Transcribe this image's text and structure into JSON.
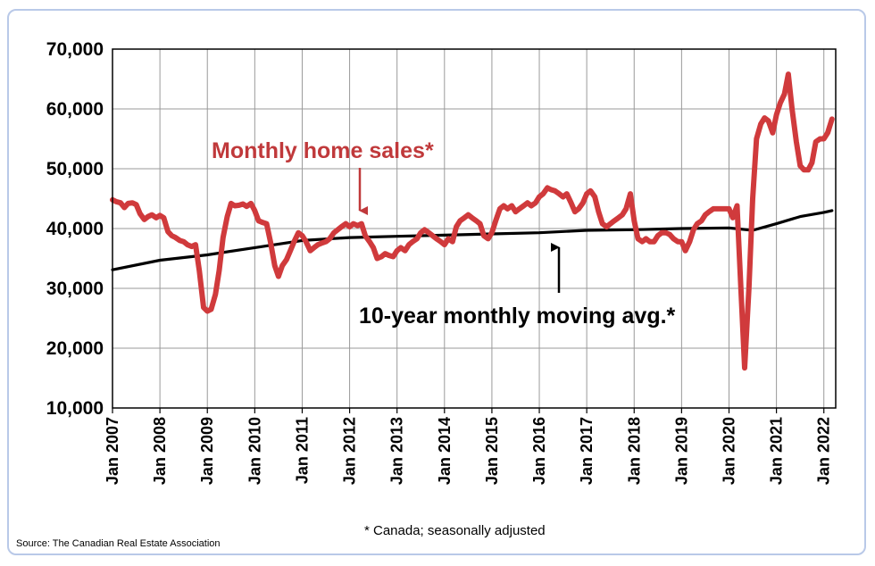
{
  "chart_data": {
    "type": "line",
    "title": "",
    "xlabel": "",
    "ylabel": "",
    "ylim": [
      10000,
      70000
    ],
    "yticks": [
      10000,
      20000,
      30000,
      40000,
      50000,
      60000,
      70000
    ],
    "ytick_labels": [
      "10,000",
      "20,000",
      "30,000",
      "40,000",
      "50,000",
      "60,000",
      "70,000"
    ],
    "x_range": [
      2007.0,
      2022.25
    ],
    "xtick_labels": [
      "Jan 2007",
      "Jan 2008",
      "Jan 2009",
      "Jan 2010",
      "Jan 2011",
      "Jan 2012",
      "Jan 2013",
      "Jan 2014",
      "Jan 2015",
      "Jan 2016",
      "Jan 2017",
      "Jan 2018",
      "Jan 2019",
      "Jan 2020",
      "Jan 2021",
      "Jan 2022"
    ],
    "grid": true,
    "series": [
      {
        "name": "Monthly home sales*",
        "color": "#d03a3c",
        "points": [
          [
            2007.0,
            44800
          ],
          [
            2007.08,
            44500
          ],
          [
            2007.17,
            44300
          ],
          [
            2007.25,
            43500
          ],
          [
            2007.33,
            44200
          ],
          [
            2007.42,
            44300
          ],
          [
            2007.5,
            44000
          ],
          [
            2007.58,
            42500
          ],
          [
            2007.67,
            41500
          ],
          [
            2007.75,
            42000
          ],
          [
            2007.83,
            42300
          ],
          [
            2007.92,
            41800
          ],
          [
            2008.0,
            42200
          ],
          [
            2008.08,
            41800
          ],
          [
            2008.17,
            39500
          ],
          [
            2008.25,
            38800
          ],
          [
            2008.33,
            38500
          ],
          [
            2008.42,
            38000
          ],
          [
            2008.5,
            37800
          ],
          [
            2008.58,
            37300
          ],
          [
            2008.67,
            37000
          ],
          [
            2008.75,
            37300
          ],
          [
            2008.83,
            33000
          ],
          [
            2008.92,
            26800
          ],
          [
            2009.0,
            26200
          ],
          [
            2009.08,
            26500
          ],
          [
            2009.17,
            29000
          ],
          [
            2009.25,
            33000
          ],
          [
            2009.33,
            38500
          ],
          [
            2009.42,
            42000
          ],
          [
            2009.5,
            44200
          ],
          [
            2009.58,
            43800
          ],
          [
            2009.67,
            43900
          ],
          [
            2009.75,
            44100
          ],
          [
            2009.83,
            43700
          ],
          [
            2009.92,
            44200
          ],
          [
            2010.0,
            43000
          ],
          [
            2010.08,
            41300
          ],
          [
            2010.17,
            41000
          ],
          [
            2010.25,
            40800
          ],
          [
            2010.33,
            37800
          ],
          [
            2010.42,
            33800
          ],
          [
            2010.5,
            32000
          ],
          [
            2010.58,
            33800
          ],
          [
            2010.67,
            34800
          ],
          [
            2010.75,
            36300
          ],
          [
            2010.83,
            37800
          ],
          [
            2010.92,
            39300
          ],
          [
            2011.0,
            38800
          ],
          [
            2011.08,
            37800
          ],
          [
            2011.17,
            36300
          ],
          [
            2011.25,
            36800
          ],
          [
            2011.33,
            37300
          ],
          [
            2011.42,
            37600
          ],
          [
            2011.5,
            37800
          ],
          [
            2011.58,
            38300
          ],
          [
            2011.67,
            39300
          ],
          [
            2011.75,
            39800
          ],
          [
            2011.83,
            40300
          ],
          [
            2011.92,
            40800
          ],
          [
            2012.0,
            40300
          ],
          [
            2012.08,
            40800
          ],
          [
            2012.17,
            40500
          ],
          [
            2012.25,
            40800
          ],
          [
            2012.33,
            38800
          ],
          [
            2012.42,
            37800
          ],
          [
            2012.5,
            36800
          ],
          [
            2012.58,
            35000
          ],
          [
            2012.67,
            35300
          ],
          [
            2012.75,
            35800
          ],
          [
            2012.83,
            35500
          ],
          [
            2012.92,
            35300
          ],
          [
            2013.0,
            36300
          ],
          [
            2013.08,
            36800
          ],
          [
            2013.17,
            36300
          ],
          [
            2013.25,
            37300
          ],
          [
            2013.33,
            37800
          ],
          [
            2013.42,
            38300
          ],
          [
            2013.5,
            39300
          ],
          [
            2013.58,
            39800
          ],
          [
            2013.67,
            39300
          ],
          [
            2013.75,
            38800
          ],
          [
            2013.83,
            38300
          ],
          [
            2013.92,
            37800
          ],
          [
            2014.0,
            37300
          ],
          [
            2014.08,
            38300
          ],
          [
            2014.17,
            37800
          ],
          [
            2014.25,
            40300
          ],
          [
            2014.33,
            41300
          ],
          [
            2014.42,
            41800
          ],
          [
            2014.5,
            42300
          ],
          [
            2014.58,
            41800
          ],
          [
            2014.67,
            41300
          ],
          [
            2014.75,
            40800
          ],
          [
            2014.83,
            38800
          ],
          [
            2014.92,
            38300
          ],
          [
            2015.0,
            39300
          ],
          [
            2015.08,
            41300
          ],
          [
            2015.17,
            43300
          ],
          [
            2015.25,
            43800
          ],
          [
            2015.33,
            43300
          ],
          [
            2015.42,
            43800
          ],
          [
            2015.5,
            42800
          ],
          [
            2015.58,
            43300
          ],
          [
            2015.67,
            43800
          ],
          [
            2015.75,
            44300
          ],
          [
            2015.83,
            43800
          ],
          [
            2015.92,
            44300
          ],
          [
            2016.0,
            45300
          ],
          [
            2016.08,
            45800
          ],
          [
            2016.17,
            46800
          ],
          [
            2016.25,
            46500
          ],
          [
            2016.33,
            46300
          ],
          [
            2016.42,
            45800
          ],
          [
            2016.5,
            45300
          ],
          [
            2016.58,
            45800
          ],
          [
            2016.67,
            44300
          ],
          [
            2016.75,
            42800
          ],
          [
            2016.83,
            43300
          ],
          [
            2016.92,
            44300
          ],
          [
            2017.0,
            45800
          ],
          [
            2017.08,
            46300
          ],
          [
            2017.17,
            45300
          ],
          [
            2017.25,
            42800
          ],
          [
            2017.33,
            40800
          ],
          [
            2017.42,
            40300
          ],
          [
            2017.5,
            40800
          ],
          [
            2017.58,
            41300
          ],
          [
            2017.67,
            41800
          ],
          [
            2017.75,
            42300
          ],
          [
            2017.83,
            43300
          ],
          [
            2017.92,
            45800
          ],
          [
            2018.0,
            41300
          ],
          [
            2018.08,
            38300
          ],
          [
            2018.17,
            37800
          ],
          [
            2018.25,
            38300
          ],
          [
            2018.33,
            37800
          ],
          [
            2018.42,
            37800
          ],
          [
            2018.5,
            38800
          ],
          [
            2018.58,
            39300
          ],
          [
            2018.67,
            39300
          ],
          [
            2018.75,
            39000
          ],
          [
            2018.83,
            38300
          ],
          [
            2018.92,
            37800
          ],
          [
            2019.0,
            37800
          ],
          [
            2019.08,
            36300
          ],
          [
            2019.17,
            37800
          ],
          [
            2019.25,
            39800
          ],
          [
            2019.33,
            40800
          ],
          [
            2019.42,
            41300
          ],
          [
            2019.5,
            42300
          ],
          [
            2019.58,
            42800
          ],
          [
            2019.67,
            43300
          ],
          [
            2019.75,
            43300
          ],
          [
            2019.83,
            43300
          ],
          [
            2019.92,
            43300
          ],
          [
            2020.0,
            43300
          ],
          [
            2020.08,
            41800
          ],
          [
            2020.17,
            43800
          ],
          [
            2020.25,
            30000
          ],
          [
            2020.33,
            16700
          ],
          [
            2020.42,
            30000
          ],
          [
            2020.5,
            45000
          ],
          [
            2020.58,
            55000
          ],
          [
            2020.67,
            57500
          ],
          [
            2020.75,
            58500
          ],
          [
            2020.83,
            58000
          ],
          [
            2020.92,
            56000
          ],
          [
            2021.0,
            59000
          ],
          [
            2021.08,
            61000
          ],
          [
            2021.17,
            62500
          ],
          [
            2021.25,
            65800
          ],
          [
            2021.33,
            60000
          ],
          [
            2021.42,
            54500
          ],
          [
            2021.5,
            50500
          ],
          [
            2021.58,
            49800
          ],
          [
            2021.67,
            49800
          ],
          [
            2021.75,
            51000
          ],
          [
            2021.83,
            54500
          ],
          [
            2021.92,
            55000
          ],
          [
            2022.0,
            55000
          ],
          [
            2022.08,
            56000
          ],
          [
            2022.17,
            58300
          ]
        ]
      },
      {
        "name": "10-year monthly moving avg.*",
        "color": "#000000",
        "points": [
          [
            2007.0,
            33100
          ],
          [
            2008.0,
            34700
          ],
          [
            2009.0,
            35600
          ],
          [
            2010.0,
            36800
          ],
          [
            2011.0,
            38000
          ],
          [
            2012.0,
            38500
          ],
          [
            2013.0,
            38700
          ],
          [
            2014.0,
            38900
          ],
          [
            2015.0,
            39100
          ],
          [
            2016.0,
            39300
          ],
          [
            2017.0,
            39700
          ],
          [
            2018.0,
            39800
          ],
          [
            2019.0,
            40000
          ],
          [
            2020.0,
            40100
          ],
          [
            2020.5,
            39700
          ],
          [
            2021.0,
            40800
          ],
          [
            2021.5,
            42000
          ],
          [
            2022.0,
            42700
          ],
          [
            2022.17,
            43000
          ]
        ]
      }
    ],
    "annotations": {
      "sales_label": "Monthly home sales*",
      "avg_label": "10-year monthly moving avg.*"
    }
  },
  "footnote": "* Canada; seasonally adjusted",
  "source": "Source: The Canadian Real Estate Association"
}
